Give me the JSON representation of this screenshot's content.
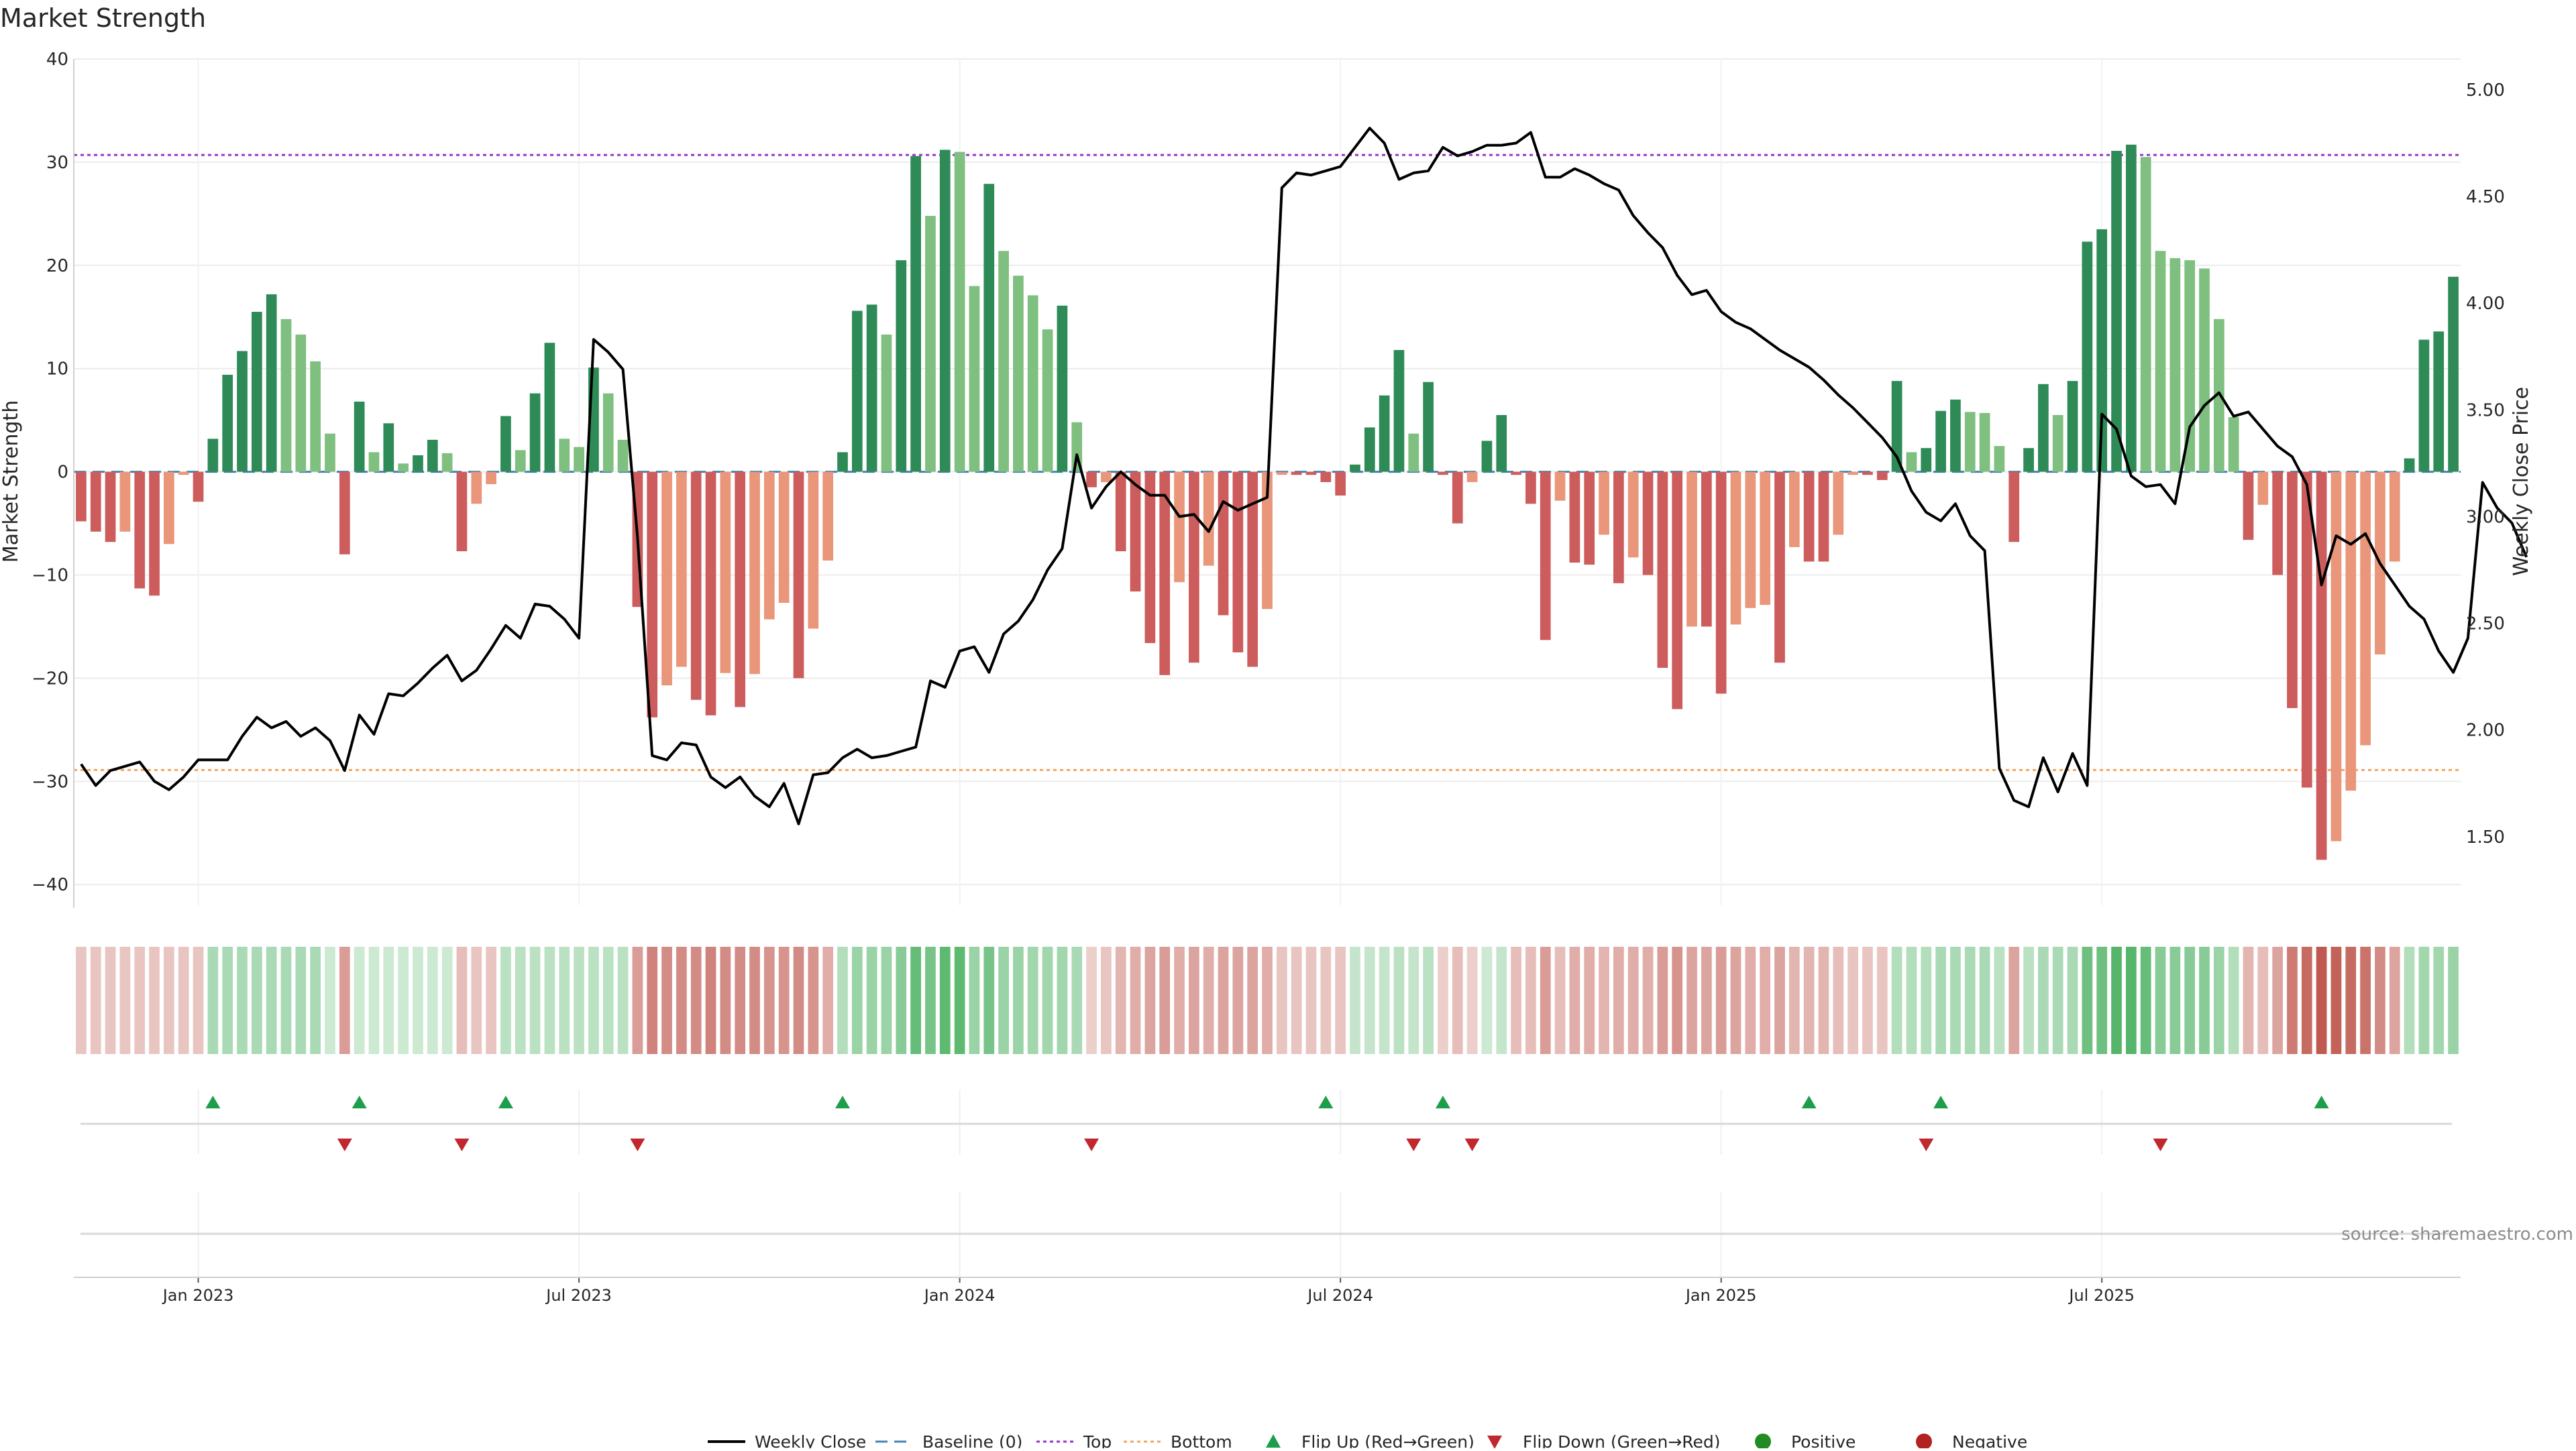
{
  "chart_data": {
    "type": "bar",
    "title": "Market Strength",
    "ylabel": "Market Strength",
    "y2label": "Weekly Close Price",
    "ylim": [
      -42,
      40
    ],
    "y2lim": [
      1.2,
      5.2
    ],
    "yticks": [
      "40",
      "30",
      "20",
      "10",
      "0",
      "−10",
      "−20",
      "−30",
      "−40"
    ],
    "y2ticks": [
      "5.00",
      "4.50",
      "4.00",
      "3.50",
      "3.00",
      "2.50",
      "2.00",
      "1.50"
    ],
    "xticks": [
      {
        "label": "Jan 2023",
        "index": 8
      },
      {
        "label": "Jul 2023",
        "index": 34
      },
      {
        "label": "Jan 2024",
        "index": 60
      },
      {
        "label": "Jul 2024",
        "index": 86
      },
      {
        "label": "Jan 2025",
        "index": 112
      },
      {
        "label": "Jul 2025",
        "index": 138
      }
    ],
    "top_line": 30.7,
    "bottom_line": -28.9,
    "grid": true,
    "source": "source: sharemaestro.com",
    "legend_position": "bottom",
    "legend": [
      {
        "label": "Weekly Close",
        "key": "close"
      },
      {
        "label": "Baseline (0)",
        "key": "baseline"
      },
      {
        "label": "Top",
        "key": "top"
      },
      {
        "label": "Bottom",
        "key": "bottom"
      },
      {
        "label": "Flip Up (Red→Green)",
        "key": "flipup"
      },
      {
        "label": "Flip Down (Green→Red)",
        "key": "flipdown"
      },
      {
        "label": "Positive",
        "key": "positive"
      },
      {
        "label": "Negative",
        "key": "negative"
      }
    ],
    "colors": {
      "pos_strong": "#2e8b57",
      "pos_weak": "#7fbf7f",
      "neg_strong": "#cd5c5c",
      "neg_weak": "#e9967a",
      "close": "#000000",
      "baseline": "#4682b4",
      "top": "#9932cc",
      "bottom": "#f4a460",
      "flip_up": "#1e9e4a",
      "flip_down": "#c0282d",
      "positive_dot": "#228b22",
      "negative_dot": "#b22222",
      "heat_pos": "#55b56a",
      "heat_neg": "#c05a50"
    },
    "strength": [
      -4.8,
      -5.8,
      -6.8,
      -5.8,
      -11.3,
      -12.0,
      -7.0,
      -0.3,
      -2.9,
      3.2,
      9.4,
      11.7,
      15.5,
      17.2,
      14.8,
      13.3,
      10.7,
      3.7,
      -8.0,
      6.8,
      1.9,
      4.7,
      0.8,
      1.6,
      3.1,
      1.8,
      -7.7,
      -3.1,
      -1.2,
      5.4,
      2.1,
      7.6,
      12.5,
      3.2,
      2.4,
      10.1,
      7.6,
      3.1,
      -13.1,
      -23.8,
      -20.7,
      -18.9,
      -22.1,
      -23.6,
      -19.5,
      -22.8,
      -19.6,
      -14.3,
      -12.7,
      -20.0,
      -15.2,
      -8.6,
      1.9,
      15.6,
      16.2,
      13.3,
      20.5,
      30.6,
      24.8,
      31.2,
      31.0,
      18.0,
      27.9,
      21.4,
      19.0,
      17.1,
      13.8,
      16.1,
      4.8,
      -1.5,
      -1.0,
      -7.7,
      -11.6,
      -16.6,
      -19.7,
      -10.7,
      -18.5,
      -9.1,
      -13.9,
      -17.5,
      -18.9,
      -13.3,
      -0.3,
      -0.3,
      -0.3,
      -1.0,
      -2.3,
      0.7,
      4.3,
      7.4,
      11.8,
      3.7,
      8.7,
      -0.3,
      -5.0,
      -1.0,
      3.0,
      5.5,
      -0.3,
      -3.1,
      -16.3,
      -2.8,
      -8.8,
      -9.0,
      -6.1,
      -10.8,
      -8.3,
      -10.0,
      -19.0,
      -23.0,
      -15.0,
      -15.0,
      -21.5,
      -14.8,
      -13.2,
      -12.9,
      -18.5,
      -7.3,
      -8.7,
      -8.7,
      -6.1,
      -0.3,
      -0.3,
      -0.8,
      8.8,
      1.9,
      2.3,
      5.9,
      7.0,
      5.8,
      5.7,
      2.5,
      -6.8,
      2.3,
      8.5,
      5.5,
      8.8,
      22.3,
      23.5,
      31.1,
      31.7,
      30.5,
      21.4,
      20.7,
      20.5,
      19.7,
      14.8,
      5.3,
      -6.6,
      -3.2,
      -10.0,
      -22.9,
      -30.6,
      -37.6,
      -35.8,
      -30.9,
      -26.5,
      -17.7,
      -8.7,
      1.3,
      12.8,
      13.6,
      18.9
    ],
    "close": [
      1.84,
      1.74,
      1.81,
      1.83,
      1.85,
      1.76,
      1.72,
      1.78,
      1.86,
      1.86,
      1.86,
      1.97,
      2.06,
      2.01,
      2.04,
      1.97,
      2.01,
      1.95,
      1.81,
      2.07,
      1.98,
      2.17,
      2.16,
      2.22,
      2.29,
      2.35,
      2.23,
      2.28,
      2.38,
      2.49,
      2.43,
      2.59,
      2.58,
      2.52,
      2.43,
      3.83,
      3.77,
      3.69,
      2.9,
      1.88,
      1.86,
      1.94,
      1.93,
      1.78,
      1.73,
      1.78,
      1.69,
      1.64,
      1.75,
      1.56,
      1.79,
      1.8,
      1.87,
      1.91,
      1.87,
      1.88,
      1.9,
      1.92,
      2.23,
      2.2,
      2.37,
      2.39,
      2.27,
      2.45,
      2.51,
      2.61,
      2.75,
      2.85,
      3.29,
      3.04,
      3.14,
      3.21,
      3.15,
      3.1,
      3.1,
      3.0,
      3.01,
      2.93,
      3.07,
      3.03,
      3.06,
      3.09,
      4.54,
      4.61,
      4.6,
      4.62,
      4.64,
      4.73,
      4.82,
      4.75,
      4.58,
      4.61,
      4.62,
      4.73,
      4.69,
      4.71,
      4.74,
      4.74,
      4.75,
      4.8,
      4.59,
      4.59,
      4.63,
      4.6,
      4.56,
      4.53,
      4.41,
      4.33,
      4.26,
      4.13,
      4.04,
      4.06,
      3.96,
      3.91,
      3.88,
      3.83,
      3.78,
      3.74,
      3.7,
      3.64,
      3.57,
      3.51,
      3.44,
      3.37,
      3.28,
      3.12,
      3.02,
      2.98,
      3.06,
      2.91,
      2.84,
      1.82,
      1.67,
      1.64,
      1.87,
      1.71,
      1.89,
      1.74,
      3.48,
      3.41,
      3.19,
      3.14,
      3.15,
      3.06,
      3.42,
      3.52,
      3.58,
      3.47,
      3.49,
      3.41,
      3.33,
      3.28,
      3.15,
      2.68,
      2.91,
      2.87,
      2.92,
      2.78,
      2.68,
      2.58,
      2.52,
      2.37,
      2.27,
      2.43,
      3.16,
      3.04,
      2.97,
      2.81
    ],
    "heat": [
      0.35,
      0.35,
      0.35,
      0.35,
      0.35,
      0.35,
      0.35,
      0.35,
      0.35,
      0.5,
      0.5,
      0.5,
      0.5,
      0.5,
      0.5,
      0.5,
      0.5,
      0.3,
      0.6,
      0.3,
      0.3,
      0.3,
      0.3,
      0.3,
      0.3,
      0.3,
      0.4,
      0.35,
      0.35,
      0.4,
      0.4,
      0.4,
      0.4,
      0.4,
      0.4,
      0.4,
      0.4,
      0.4,
      0.6,
      0.75,
      0.7,
      0.7,
      0.7,
      0.75,
      0.7,
      0.7,
      0.7,
      0.65,
      0.65,
      0.7,
      0.65,
      0.5,
      0.45,
      0.6,
      0.6,
      0.6,
      0.7,
      0.9,
      0.8,
      0.95,
      0.95,
      0.6,
      0.8,
      0.6,
      0.6,
      0.55,
      0.55,
      0.55,
      0.5,
      0.3,
      0.35,
      0.45,
      0.5,
      0.55,
      0.6,
      0.5,
      0.55,
      0.5,
      0.55,
      0.55,
      0.55,
      0.5,
      0.35,
      0.35,
      0.35,
      0.35,
      0.35,
      0.35,
      0.35,
      0.35,
      0.4,
      0.35,
      0.4,
      0.3,
      0.4,
      0.3,
      0.3,
      0.35,
      0.4,
      0.4,
      0.6,
      0.4,
      0.5,
      0.5,
      0.45,
      0.5,
      0.5,
      0.5,
      0.6,
      0.65,
      0.55,
      0.55,
      0.6,
      0.55,
      0.5,
      0.5,
      0.55,
      0.45,
      0.45,
      0.45,
      0.4,
      0.35,
      0.35,
      0.35,
      0.45,
      0.45,
      0.45,
      0.5,
      0.5,
      0.5,
      0.5,
      0.4,
      0.55,
      0.4,
      0.5,
      0.5,
      0.5,
      0.85,
      0.85,
      1.0,
      1.0,
      0.9,
      0.7,
      0.7,
      0.7,
      0.7,
      0.6,
      0.45,
      0.45,
      0.4,
      0.55,
      0.8,
      0.9,
      1.0,
      0.95,
      0.9,
      0.85,
      0.7,
      0.55,
      0.45,
      0.55,
      0.55,
      0.6
    ],
    "flip_up": [
      9,
      19,
      29,
      52,
      85,
      93,
      118,
      127,
      153
    ],
    "flip_down": [
      18,
      26,
      38,
      69,
      91,
      95,
      126,
      142
    ]
  }
}
